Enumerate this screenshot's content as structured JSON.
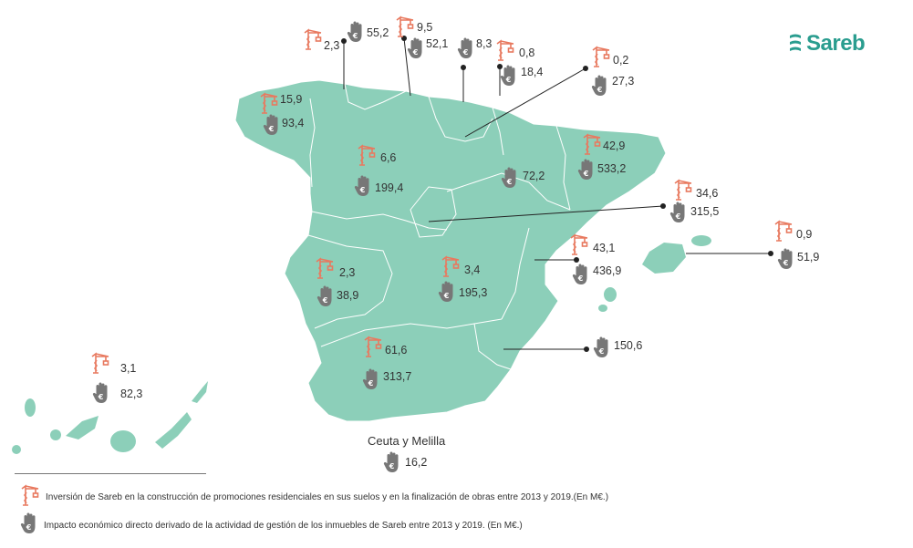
{
  "brand": {
    "name": "Sareb"
  },
  "colors": {
    "land": "#8ccfb9",
    "border": "#ffffff",
    "crane": "#e8795f",
    "hand": "#777777",
    "logo": "#2a9d8f"
  },
  "regions": [
    {
      "id": "cantabria",
      "investment": "2,3",
      "impact": "55,2"
    },
    {
      "id": "pais-vasco",
      "investment": "9,5",
      "impact": "52,1"
    },
    {
      "id": "navarra",
      "investment": "0,8",
      "impact": "18,4"
    },
    {
      "id": "asturias-extra",
      "investment": "",
      "impact": "8,3"
    },
    {
      "id": "la-rioja",
      "investment": "0,2",
      "impact": "27,3"
    },
    {
      "id": "galicia",
      "investment": "15,9",
      "impact": "93,4"
    },
    {
      "id": "castilla-y-leon",
      "investment": "6,6",
      "impact": "199,4"
    },
    {
      "id": "aragon",
      "investment": "",
      "impact": "72,2"
    },
    {
      "id": "cataluna",
      "investment": "42,9",
      "impact": "533,2"
    },
    {
      "id": "madrid",
      "investment": "34,6",
      "impact": "315,5"
    },
    {
      "id": "baleares",
      "investment": "0,9",
      "impact": "51,9"
    },
    {
      "id": "valencia",
      "investment": "43,1",
      "impact": "436,9"
    },
    {
      "id": "extremadura",
      "investment": "2,3",
      "impact": "38,9"
    },
    {
      "id": "castilla-la-mancha",
      "investment": "3,4",
      "impact": "195,3"
    },
    {
      "id": "murcia",
      "investment": "",
      "impact": "150,6"
    },
    {
      "id": "andalucia",
      "investment": "61,6",
      "impact": "313,7"
    },
    {
      "id": "canarias",
      "investment": "3,1",
      "impact": "82,3"
    },
    {
      "id": "ceuta-melilla",
      "name": "Ceuta y Melilla",
      "investment": "",
      "impact": "16,2"
    }
  ],
  "legend": {
    "investment": "Inversión de Sareb en la construcción de promociones residenciales en sus suelos y en la finalización de obras entre 2013 y 2019.(En M€.)",
    "impact": "Impacto económico directo derivado de la actividad de gestión de los inmuebles de Sareb entre 2013 y 2019. (En M€.)"
  }
}
